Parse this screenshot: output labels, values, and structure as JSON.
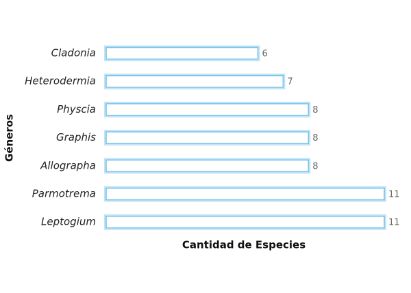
{
  "chart_data": {
    "type": "bar",
    "orientation": "horizontal",
    "x_label": "Cantidad de Especies",
    "y_label": "Géneros",
    "categories": [
      "Cladonia",
      "Heterodermia",
      "Physcia",
      "Graphis",
      "Allographa",
      "Parmotrema",
      "Leptogium"
    ],
    "values": [
      6,
      7,
      8,
      8,
      8,
      11,
      11
    ],
    "color": "#7cc4ec",
    "xlim": [
      0,
      11
    ]
  }
}
